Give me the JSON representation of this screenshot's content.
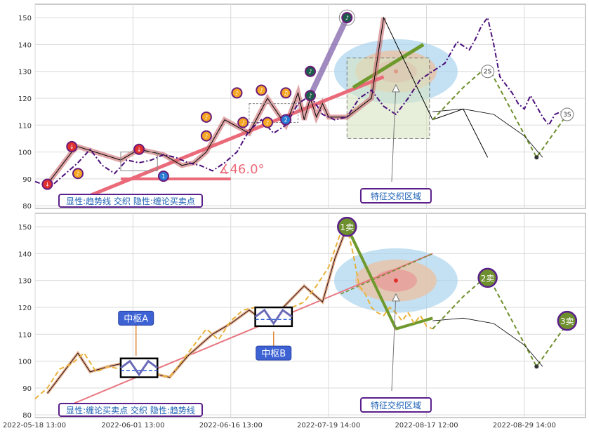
{
  "chart_data": [
    {
      "type": "line",
      "panel": "top",
      "ylim": [
        79,
        155
      ],
      "yticks": [
        80,
        90,
        100,
        110,
        120,
        130,
        140,
        150
      ],
      "grid": true,
      "xlim": [
        0,
        180
      ],
      "price_series": {
        "name": "",
        "style": "purple dash-dot",
        "x": [
          0,
          5,
          10,
          14,
          18,
          22,
          26,
          30,
          34,
          38,
          42,
          46,
          50,
          54,
          58,
          62,
          66,
          70,
          74,
          78,
          82,
          86,
          90,
          94,
          98,
          102,
          106,
          110,
          114,
          118,
          122,
          126,
          130,
          134,
          138,
          142,
          144,
          146,
          148,
          150,
          152,
          154,
          156,
          158,
          160,
          162,
          164,
          166,
          168,
          170,
          172
        ],
        "y": [
          89,
          87,
          92,
          96,
          101,
          95,
          92,
          97,
          96,
          97,
          99,
          98,
          96,
          95,
          93,
          96,
          100,
          108,
          112,
          107,
          110,
          118,
          121,
          114,
          112,
          113,
          120,
          123,
          117,
          114,
          120,
          127,
          130,
          133,
          141,
          138,
          142,
          147,
          150,
          140,
          128,
          125,
          122,
          118,
          116,
          121,
          117,
          113,
          110,
          114,
          115
        ]
      },
      "trendline": {
        "style": "pink thick",
        "x": [
          14,
          114
        ],
        "y": [
          82,
          128
        ],
        "angle_label": "∡46.0°"
      },
      "green_extension": {
        "x": [
          104,
          127
        ],
        "y": [
          124,
          140
        ]
      },
      "stroke_zigzag": {
        "x": [
          4,
          12,
          14,
          28,
          34,
          42,
          48,
          52,
          56,
          62,
          70,
          76,
          82,
          86,
          88,
          90,
          92,
          94,
          96,
          102,
          110,
          114,
          130,
          140,
          148
        ],
        "y": [
          88,
          100,
          102,
          97,
          101,
          99,
          95,
          96,
          100,
          112,
          107,
          120,
          110,
          122,
          112,
          120,
          113,
          118,
          113,
          113,
          120,
          150,
          112,
          116,
          98
        ]
      },
      "buy_sell_markers": [
        {
          "x": 4,
          "y": 88,
          "label": "↓",
          "color": "#e0312f"
        },
        {
          "x": 12,
          "y": 102,
          "label": "↓",
          "color": "#e0312f"
        },
        {
          "x": 14,
          "y": 92,
          "label": "♪",
          "color": "#f5a623"
        },
        {
          "x": 34,
          "y": 101,
          "label": "↓",
          "color": "#e0312f"
        },
        {
          "x": 42,
          "y": 91,
          "label": "1",
          "color": "#2a7bd6"
        },
        {
          "x": 56,
          "y": 113,
          "label": "♪",
          "color": "#f5a623"
        },
        {
          "x": 56,
          "y": 106,
          "label": "♪",
          "color": "#f5a623"
        },
        {
          "x": 66,
          "y": 122,
          "label": "♪",
          "color": "#f5a623"
        },
        {
          "x": 68,
          "y": 111,
          "label": "♪",
          "color": "#f5a623"
        },
        {
          "x": 74,
          "y": 123,
          "label": "♪",
          "color": "#f5a623"
        },
        {
          "x": 76,
          "y": 111,
          "label": "♪",
          "color": "#f5a623"
        },
        {
          "x": 82,
          "y": 122,
          "label": "♫",
          "color": "#f5a623"
        },
        {
          "x": 82,
          "y": 112,
          "label": "2",
          "color": "#2a7bd6"
        },
        {
          "x": 90,
          "y": 130,
          "label": "♪",
          "color": "#1d5c4a"
        },
        {
          "x": 90,
          "y": 121,
          "label": "♪",
          "color": "#1d5c4a"
        },
        {
          "x": 102,
          "y": 150,
          "label": "♪",
          "color": "#1d5c4a"
        }
      ],
      "forecast_points": [
        {
          "x": 148,
          "y": 130,
          "label": "2S"
        },
        {
          "x": 174,
          "y": 114,
          "label": "3S"
        }
      ],
      "forecast_path": {
        "x": [
          130,
          140,
          148,
          164,
          174
        ],
        "y": [
          112,
          124,
          132,
          98,
          114
        ]
      },
      "arc": {
        "x": [
          130,
          140,
          150,
          160,
          166
        ],
        "y": [
          115,
          116,
          114,
          106,
          98
        ]
      },
      "label_bottom": "显性:趋势线 交织 隐性:缠论买卖点",
      "label_region": "特征交织区域"
    },
    {
      "type": "line",
      "panel": "bottom",
      "ylim": [
        79,
        155
      ],
      "yticks": [
        80,
        90,
        100,
        110,
        120,
        130,
        140,
        150
      ],
      "grid": true,
      "xlim": [
        0,
        180
      ],
      "x_tick_labels": [
        "2022-05-18 13:00",
        "2022-06-01 13:00",
        "2022-06-16 13:00",
        "2022-07-19 14:00",
        "2022-08-17 12:00",
        "2022-08-29 14:00"
      ],
      "price_series": {
        "name": "",
        "style": "orange dash",
        "x": [
          0,
          4,
          8,
          12,
          16,
          20,
          24,
          28,
          32,
          36,
          40,
          44,
          48,
          52,
          56,
          60,
          64,
          68,
          72,
          76,
          80,
          84,
          88,
          92,
          96,
          100,
          102,
          104,
          106,
          108,
          110,
          112,
          114,
          116,
          118,
          120,
          122,
          124,
          126,
          128,
          130
        ],
        "y": [
          86,
          90,
          97,
          99,
          103,
          96,
          98,
          97,
          99,
          97,
          95,
          94,
          100,
          106,
          112,
          108,
          115,
          119,
          120,
          118,
          114,
          120,
          122,
          128,
          135,
          148,
          150,
          140,
          128,
          125,
          120,
          118,
          117,
          120,
          118,
          115,
          118,
          114,
          117,
          113,
          112
        ]
      },
      "trendline": {
        "x": [
          10,
          130
        ],
        "y": [
          83,
          140
        ]
      },
      "stroke_path": {
        "x": [
          4,
          14,
          18,
          24,
          32,
          40,
          44,
          50,
          58,
          64,
          70,
          76,
          82,
          88,
          94,
          98,
          102,
          118,
          130,
          148,
          164,
          174
        ],
        "y": [
          88,
          103,
          96,
          98,
          100,
          95,
          94,
          102,
          110,
          114,
          119,
          114,
          121,
          128,
          122,
          138,
          150,
          112,
          116,
          132,
          98,
          114
        ]
      },
      "zhongshu": [
        {
          "label": "中枢A",
          "x0": 28,
          "x1": 40,
          "y0": 94,
          "y1": 101
        },
        {
          "label": "中枢B",
          "x0": 72,
          "x1": 84,
          "y0": 113,
          "y1": 120
        }
      ],
      "sell_markers": [
        {
          "x": 102,
          "y": 150,
          "label": "1卖"
        },
        {
          "x": 148,
          "y": 131,
          "label": "2卖"
        },
        {
          "x": 174,
          "y": 115,
          "label": "3卖"
        }
      ],
      "forecast_path": {
        "x": [
          130,
          140,
          148,
          164,
          174
        ],
        "y": [
          112,
          124,
          132,
          98,
          114
        ]
      },
      "arc": {
        "x": [
          130,
          140,
          150,
          160,
          166
        ],
        "y": [
          115,
          116,
          114,
          106,
          98
        ]
      },
      "label_bottom": "显性:缠论买卖点 交织 隐性:趋势线",
      "label_region": "特征交织区域"
    }
  ]
}
